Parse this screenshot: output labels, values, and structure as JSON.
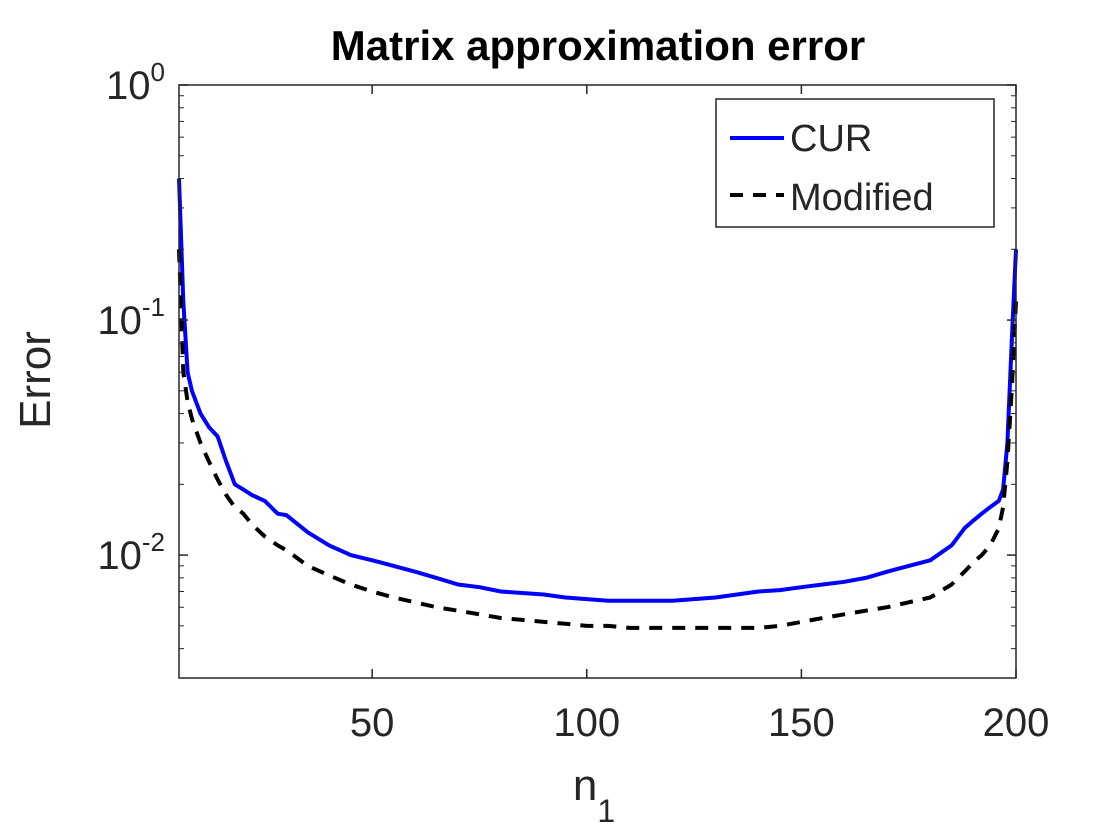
{
  "chart_data": {
    "type": "line",
    "title": "Matrix approximation error",
    "xlabel": "n",
    "xlabel_subscript": "1",
    "ylabel": "Error",
    "xlim": [
      5,
      200
    ],
    "ylim": [
      0.003,
      1
    ],
    "yscale": "log",
    "grid": false,
    "legend_position": "top-right",
    "x_ticks": [
      50,
      100,
      150,
      200
    ],
    "x_tick_labels": [
      "50",
      "100",
      "150",
      "200"
    ],
    "y_ticks": [
      0.01,
      0.1,
      1
    ],
    "y_tick_labels": [
      {
        "base": "10",
        "exp": "-2"
      },
      {
        "base": "10",
        "exp": "-1"
      },
      {
        "base": "10",
        "exp": "0"
      }
    ],
    "series": [
      {
        "name": "CUR",
        "color": "#0000ff",
        "style": "solid",
        "x": [
          5,
          6,
          7,
          8,
          10,
          12,
          14,
          16,
          18,
          20,
          22,
          25,
          28,
          30,
          35,
          40,
          45,
          50,
          55,
          60,
          65,
          70,
          75,
          80,
          85,
          90,
          95,
          100,
          105,
          110,
          115,
          120,
          125,
          130,
          135,
          140,
          145,
          150,
          155,
          160,
          165,
          170,
          175,
          180,
          185,
          188,
          190,
          192,
          194,
          196,
          197,
          198,
          199,
          200
        ],
        "y": [
          0.4,
          0.12,
          0.06,
          0.05,
          0.04,
          0.035,
          0.032,
          0.025,
          0.02,
          0.019,
          0.018,
          0.017,
          0.015,
          0.0148,
          0.0125,
          0.011,
          0.01,
          0.0095,
          0.009,
          0.0085,
          0.008,
          0.0075,
          0.0073,
          0.007,
          0.0069,
          0.0068,
          0.0066,
          0.0065,
          0.0064,
          0.0064,
          0.0064,
          0.0064,
          0.0065,
          0.0066,
          0.0068,
          0.007,
          0.0071,
          0.0073,
          0.0075,
          0.0077,
          0.008,
          0.0085,
          0.009,
          0.0095,
          0.011,
          0.013,
          0.014,
          0.015,
          0.016,
          0.017,
          0.019,
          0.03,
          0.08,
          0.2
        ]
      },
      {
        "name": "Modified",
        "color": "#000000",
        "style": "dashed",
        "x": [
          5,
          6,
          7,
          8,
          10,
          12,
          14,
          16,
          18,
          20,
          22,
          25,
          28,
          30,
          35,
          40,
          45,
          50,
          55,
          60,
          65,
          70,
          75,
          80,
          85,
          90,
          95,
          100,
          105,
          110,
          115,
          120,
          125,
          130,
          135,
          140,
          145,
          150,
          155,
          160,
          165,
          170,
          175,
          180,
          185,
          188,
          190,
          192,
          194,
          196,
          197,
          198,
          199,
          200
        ],
        "y": [
          0.2,
          0.06,
          0.045,
          0.038,
          0.03,
          0.025,
          0.021,
          0.018,
          0.016,
          0.015,
          0.0135,
          0.012,
          0.011,
          0.0105,
          0.009,
          0.0082,
          0.0075,
          0.007,
          0.0066,
          0.0063,
          0.006,
          0.0058,
          0.0056,
          0.0054,
          0.0053,
          0.0052,
          0.0051,
          0.005,
          0.005,
          0.0049,
          0.0049,
          0.0049,
          0.0049,
          0.0049,
          0.0049,
          0.0049,
          0.005,
          0.0052,
          0.0054,
          0.0056,
          0.0058,
          0.006,
          0.0063,
          0.0066,
          0.0075,
          0.0085,
          0.0093,
          0.01,
          0.011,
          0.013,
          0.016,
          0.025,
          0.05,
          0.12
        ]
      }
    ]
  }
}
